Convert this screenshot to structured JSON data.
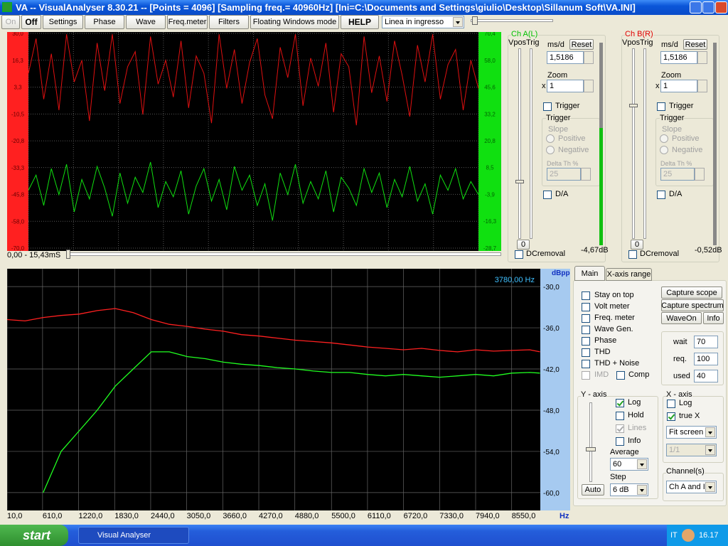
{
  "window": {
    "title": "VA -- VisualAnalyser 8.30.21 --  [Points = 4096]  [Sampling freq.= 40960Hz]  [Ini=C:\\Documents and Settings\\giulio\\Desktop\\Sillanum Soft\\VA.INI]"
  },
  "toolbar": {
    "buttons": [
      "On",
      "Off",
      "Settings",
      "Phase",
      "Wave",
      "Freq.meter",
      "Filters",
      "Floating Windows mode",
      "HELP"
    ],
    "input_select": "Linea in ingresso"
  },
  "scope": {
    "time_range": "0,00 - 15,43mS",
    "left_labels": [
      "30,0",
      "16,3",
      "3,3",
      "-10,5",
      "-20,8",
      "-33,3",
      "-45,8",
      "-58,0",
      "-70,0"
    ],
    "ylim": [
      -28.7,
      70.4
    ],
    "yticks": [
      {
        "value": 70.4,
        "label": "70,4"
      },
      {
        "value": 58,
        "label": "58,0"
      },
      {
        "value": 45.6,
        "label": "45,6"
      },
      {
        "value": 33.2,
        "label": "33,2"
      },
      {
        "value": 20.8,
        "label": "20,8"
      },
      {
        "value": 8.5,
        "label": "8,5"
      },
      {
        "value": -3.9,
        "label": "-3,9"
      },
      {
        "value": -16.3,
        "label": "-16,3"
      },
      {
        "value": -28.7,
        "label": "-28,7"
      }
    ],
    "grid": true,
    "series": [
      {
        "color": "#e01010",
        "values": [
          52,
          68,
          40,
          61,
          35,
          70,
          48,
          58,
          30,
          66,
          44,
          70,
          38,
          55,
          62,
          33,
          69,
          47,
          58,
          41,
          67,
          36,
          60,
          52,
          29,
          70,
          45,
          63,
          38,
          57,
          68,
          42,
          31,
          64,
          50,
          70,
          37,
          59,
          46,
          66,
          34,
          61,
          55,
          28,
          69,
          43,
          60,
          39,
          67,
          51,
          32,
          65,
          48,
          70,
          40,
          56,
          63,
          35,
          58,
          45
        ]
      },
      {
        "color": "#10e010",
        "values": [
          -2,
          5,
          -9,
          8,
          -4,
          10,
          -12,
          3,
          -6,
          9,
          -1,
          -14,
          6,
          -8,
          4,
          -3,
          11,
          -10,
          2,
          -5,
          7,
          -13,
          0,
          8,
          -7,
          3,
          -11,
          9,
          -2,
          5,
          -9,
          1,
          -16,
          6,
          -4,
          10,
          -8,
          2,
          -6,
          7,
          -12,
          4,
          -1,
          -9,
          8,
          -3,
          6,
          -10,
          3,
          -5,
          9,
          -7,
          1,
          -13,
          5,
          -2,
          8,
          -6,
          2,
          -4
        ]
      }
    ]
  },
  "channels": [
    {
      "label": "Ch A(L)",
      "color": "#00c000",
      "vpos": "Vpos",
      "trig": "Trig",
      "msd_label": "ms/d",
      "reset": "Reset",
      "msd": "1,5186",
      "zoom_label": "Zoom",
      "zoom_x": "x",
      "zoom": "1",
      "trigger_check": "Trigger",
      "trigger_group": "Trigger",
      "slope": "Slope",
      "positive": "Positive",
      "negative": "Negative",
      "delta": "Delta Th %",
      "delta_value": "25",
      "da": "D/A",
      "zero": "0",
      "dcremoval": "DCremoval",
      "level": "-4,67dB"
    },
    {
      "label": "Ch B(R)",
      "color": "#e00000",
      "vpos": "Vpos",
      "trig": "Trig",
      "msd_label": "ms/d",
      "reset": "Reset",
      "msd": "1,5186",
      "zoom_label": "Zoom",
      "zoom_x": "x",
      "zoom": "1",
      "trigger_check": "Trigger",
      "trigger_group": "Trigger",
      "slope": "Slope",
      "positive": "Positive",
      "negative": "Negative",
      "delta": "Delta Th %",
      "delta_value": "25",
      "da": "D/A",
      "zero": "0",
      "dcremoval": "DCremoval",
      "level": "-0,52dB"
    }
  ],
  "spectrum": {
    "type": "line",
    "marker": "3780,00 Hz",
    "y_unit": "dBpp",
    "x_unit": "Hz",
    "xlim": [
      10,
      9035
    ],
    "ylim": [
      -62.6,
      -27.4
    ],
    "xticks": [
      {
        "value": 10,
        "label": "10,0"
      },
      {
        "value": 610,
        "label": "610,0"
      },
      {
        "value": 1220,
        "label": "1220,0"
      },
      {
        "value": 1830,
        "label": "1830,0"
      },
      {
        "value": 2440,
        "label": "2440,0"
      },
      {
        "value": 3050,
        "label": "3050,0"
      },
      {
        "value": 3660,
        "label": "3660,0"
      },
      {
        "value": 4270,
        "label": "4270,0"
      },
      {
        "value": 4880,
        "label": "4880,0"
      },
      {
        "value": 5500,
        "label": "5500,0"
      },
      {
        "value": 6110,
        "label": "6110,0"
      },
      {
        "value": 6720,
        "label": "6720,0"
      },
      {
        "value": 7330,
        "label": "7330,0"
      },
      {
        "value": 7940,
        "label": "7940,0"
      },
      {
        "value": 8550,
        "label": "8550,0"
      }
    ],
    "yticks": [
      {
        "value": -30,
        "label": "-30,0"
      },
      {
        "value": -36,
        "label": "-36,0"
      },
      {
        "value": -42,
        "label": "-42,0"
      },
      {
        "value": -48,
        "label": "-48,0"
      },
      {
        "value": -54,
        "label": "-54,0"
      },
      {
        "value": -60,
        "label": "-60,0"
      }
    ],
    "grid": true,
    "x": [
      10,
      315,
      620,
      925,
      1230,
      1535,
      1840,
      2145,
      2450,
      2755,
      3060,
      3365,
      3670,
      3975,
      4280,
      4585,
      4890,
      5195,
      5500,
      5805,
      6110,
      6415,
      6720,
      7025,
      7330,
      7635,
      7940,
      8245,
      8550,
      8855,
      9030
    ],
    "series": [
      {
        "color": "#ff2020",
        "values": [
          -34.8,
          -35,
          -34.5,
          -34.2,
          -34,
          -33.5,
          -33.2,
          -33.8,
          -34.8,
          -35.5,
          -35.8,
          -36.2,
          -36.5,
          -37,
          -37.2,
          -37.5,
          -37.8,
          -38,
          -38.2,
          -38.5,
          -38.8,
          -39,
          -39.2,
          -39,
          -39.3,
          -39.5,
          -39.2,
          -39.4,
          -39.3,
          -39.2,
          -39.5
        ]
      },
      {
        "color": "#20ff20",
        "values": [
          null,
          null,
          -60,
          -54,
          -51,
          -48,
          -44.5,
          -42,
          -39.5,
          -39.5,
          -40.2,
          -40.5,
          -41,
          -41.3,
          -41.5,
          -41.8,
          -42,
          -42.3,
          -42.5,
          -42.5,
          -42.8,
          -43,
          -42.8,
          -43,
          -43.2,
          -43,
          -42.8,
          -43,
          -42.6,
          -42.5,
          -42.6
        ]
      }
    ]
  },
  "panel": {
    "tabs": [
      "Main",
      "X-axis range"
    ],
    "checks": [
      {
        "label": "Stay on top",
        "checked": false
      },
      {
        "label": "Volt meter",
        "checked": false
      },
      {
        "label": "Freq. meter",
        "checked": false
      },
      {
        "label": "Wave Gen.",
        "checked": false
      },
      {
        "label": "Phase",
        "checked": false
      },
      {
        "label": "THD",
        "checked": false
      },
      {
        "label": "THD + Noise",
        "checked": false
      },
      {
        "label": "IMD",
        "checked": false,
        "disabled": true
      }
    ],
    "comp": "Comp",
    "buttons": [
      "Capture scope",
      "Capture spectrum",
      "WaveOn",
      "Info"
    ],
    "timing": [
      {
        "label": "wait",
        "value": "70"
      },
      {
        "label": "req.",
        "value": "100"
      },
      {
        "label": "used",
        "value": "40"
      }
    ],
    "y_axis": {
      "title": "Y - axis",
      "checks": [
        {
          "label": "Log",
          "checked": true
        },
        {
          "label": "Hold",
          "checked": false
        },
        {
          "label": "Lines",
          "checked": true,
          "disabled": true
        },
        {
          "label": "Info",
          "checked": false
        }
      ],
      "average_label": "Average",
      "average": "60",
      "step_label": "Step",
      "step": "6 dB",
      "auto": "Auto"
    },
    "x_axis": {
      "title": "X - axis",
      "checks": [
        {
          "label": "Log",
          "checked": false
        },
        {
          "label": "true X",
          "checked": true
        }
      ],
      "fit": "Fit screen",
      "ratio": "1/1"
    },
    "channel_select": {
      "title": "Channel(s)",
      "value": "Ch A and I"
    }
  },
  "taskbar": {
    "start": "start",
    "task": "Visual Analyser",
    "lang": "IT",
    "clock": "16.17"
  }
}
